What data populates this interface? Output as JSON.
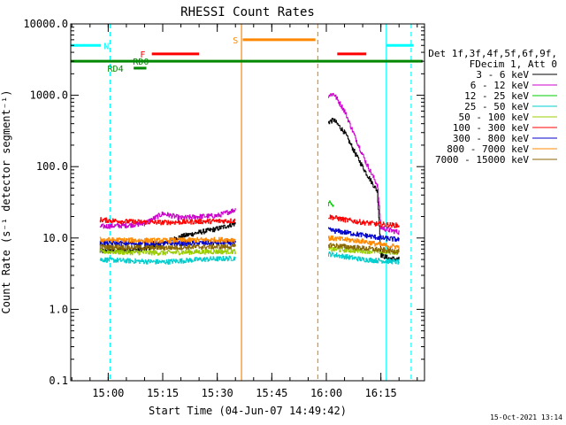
{
  "timestamp": "15-Oct-2021 13:14",
  "chart_data": {
    "type": "line",
    "title": "RHESSI Count Rates",
    "xlabel": "Start Time (04-Jun-07 14:49:42)",
    "ylabel": "Count Rate (s⁻¹ detector segment⁻¹)",
    "y_scale": "log",
    "xlim": [
      "14:49:42",
      "16:27:00"
    ],
    "ylim": [
      0.1,
      10000
    ],
    "x_ticks": [
      "15:00",
      "15:15",
      "15:30",
      "15:45",
      "16:00",
      "16:15"
    ],
    "y_ticks": [
      "0.1",
      "1.0",
      "10.0",
      "100.0",
      "1000.0",
      "10000.0"
    ],
    "legend": {
      "placement": "right",
      "header": [
        "Det 1f,3f,4f,5f,6f,9f,",
        "FDecim 1, Att 0"
      ]
    },
    "series": [
      {
        "name": "3 - 6 keV",
        "color": "#000000",
        "segments": [
          {
            "x": [
              "14:57:40",
              "15:05",
              "15:10",
              "15:15",
              "15:20",
              "15:25",
              "15:30",
              "15:35:00"
            ],
            "y": [
              6.5,
              6.8,
              7.0,
              8.5,
              10.5,
              12.0,
              13.5,
              16.0
            ]
          },
          {
            "x": [
              "16:00:30",
              "16:02",
              "16:05",
              "16:08",
              "16:11",
              "16:14",
              "16:15",
              "16:17",
              "16:20:00"
            ],
            "y": [
              420,
              450,
              300,
              150,
              80,
              45,
              5.8,
              5.2,
              5.0
            ]
          }
        ]
      },
      {
        "name": "6 - 12 keV",
        "color": "#cc00cc",
        "segments": [
          {
            "x": [
              "14:57:40",
              "15:05",
              "15:10",
              "15:15",
              "15:20",
              "15:25",
              "15:30",
              "15:35:00"
            ],
            "y": [
              14.5,
              15.0,
              16.0,
              22.0,
              19.0,
              20.0,
              20.5,
              25.0
            ]
          },
          {
            "x": [
              "16:00:30",
              "16:02",
              "16:05",
              "16:08",
              "16:11",
              "16:14",
              "16:15",
              "16:17",
              "16:20:00"
            ],
            "y": [
              1000,
              1050,
              600,
              250,
              110,
              55,
              14.0,
              13.0,
              12.0
            ]
          }
        ]
      },
      {
        "name": "12 - 25 keV",
        "color": "#00cc00",
        "segments": [
          {
            "x": [
              "16:00:30",
              "16:01:20",
              "16:02:00"
            ],
            "y": [
              30,
              32,
              28
            ]
          }
        ]
      },
      {
        "name": "25 - 50 keV",
        "color": "#00cccc",
        "segments": [
          {
            "x": [
              "14:57:40",
              "15:05",
              "15:15",
              "15:25",
              "15:35:00"
            ],
            "y": [
              5.0,
              4.8,
              4.6,
              5.0,
              5.2
            ]
          },
          {
            "x": [
              "16:00:30",
              "16:05",
              "16:10",
              "16:15",
              "16:20:00"
            ],
            "y": [
              6.0,
              5.5,
              5.0,
              4.8,
              4.6
            ]
          }
        ]
      },
      {
        "name": "50 - 100 keV",
        "color": "#99cc00",
        "segments": [
          {
            "x": [
              "14:57:40",
              "15:05",
              "15:15",
              "15:25",
              "15:35:00"
            ],
            "y": [
              6.5,
              6.3,
              6.2,
              6.4,
              6.5
            ]
          },
          {
            "x": [
              "16:00:30",
              "16:05",
              "16:10",
              "16:15",
              "16:20:00"
            ],
            "y": [
              7.0,
              6.8,
              6.6,
              6.4,
              6.3
            ]
          }
        ]
      },
      {
        "name": "100 - 300 keV",
        "color": "#ff0000",
        "segments": [
          {
            "x": [
              "14:57:40",
              "15:05",
              "15:15",
              "15:25",
              "15:35:00"
            ],
            "y": [
              18.0,
              17.0,
              16.5,
              17.0,
              17.5
            ]
          },
          {
            "x": [
              "16:00:30",
              "16:05",
              "16:10",
              "16:15",
              "16:20:00"
            ],
            "y": [
              20.0,
              18.0,
              16.5,
              15.5,
              15.0
            ]
          }
        ]
      },
      {
        "name": "300 - 800 keV",
        "color": "#0000cc",
        "segments": [
          {
            "x": [
              "14:57:40",
              "15:05",
              "15:15",
              "15:25",
              "15:35:00"
            ],
            "y": [
              8.5,
              8.4,
              8.3,
              8.5,
              8.6
            ]
          },
          {
            "x": [
              "16:00:30",
              "16:05",
              "16:10",
              "16:15",
              "16:20:00"
            ],
            "y": [
              13.0,
              12.0,
              11.0,
              10.0,
              9.5
            ]
          }
        ]
      },
      {
        "name": "800 - 7000 keV",
        "color": "#ff8800",
        "segments": [
          {
            "x": [
              "14:57:40",
              "15:05",
              "15:15",
              "15:25",
              "15:35:00"
            ],
            "y": [
              9.5,
              9.3,
              9.2,
              9.4,
              9.5
            ]
          },
          {
            "x": [
              "16:00:30",
              "16:05",
              "16:10",
              "16:15",
              "16:20:00"
            ],
            "y": [
              10.0,
              9.5,
              9.0,
              8.0,
              7.5
            ]
          }
        ]
      },
      {
        "name": "7000 - 15000 keV",
        "color": "#886600",
        "segments": [
          {
            "x": [
              "14:57:40",
              "15:05",
              "15:15",
              "15:25",
              "15:35:00"
            ],
            "y": [
              7.5,
              7.4,
              7.3,
              7.5,
              7.6
            ]
          },
          {
            "x": [
              "16:00:30",
              "16:05",
              "16:10",
              "16:15",
              "16:20:00"
            ],
            "y": [
              8.0,
              7.6,
              7.2,
              6.8,
              6.5
            ]
          }
        ]
      }
    ],
    "state_bars": [
      {
        "label": "N",
        "color": "#00ffff",
        "y": 5000,
        "segments": [
          [
            "14:49:42",
            "14:58:00"
          ],
          [
            "16:16:30",
            "16:24:00"
          ]
        ],
        "label_at": "14:59:30"
      },
      {
        "label": "F",
        "color": "#ff0000",
        "y": 3800,
        "segments": [
          [
            "15:12:00",
            "15:25:00"
          ],
          [
            "16:03:00",
            "16:11:00"
          ]
        ],
        "label_at": "15:09:30"
      },
      {
        "label": "S",
        "color": "#ff8800",
        "y": 6000,
        "segments": [
          [
            "15:37:00",
            "15:57:00"
          ]
        ],
        "label_at": "15:35:00"
      },
      {
        "label": "RD0",
        "color": "#008800",
        "y": 3000,
        "segments": [
          [
            "14:49:42",
            "16:26:30"
          ]
        ],
        "label_at": "15:09:00"
      },
      {
        "label": "RD4",
        "color": "#008800",
        "y": 2400,
        "segments": [
          [
            "15:07:00",
            "15:10:30"
          ]
        ],
        "label_at": "15:02:00"
      }
    ],
    "vlines": [
      {
        "x": "15:00:30",
        "color": "#00ffff",
        "dash": true
      },
      {
        "x": "15:36:40",
        "color": "#ff8800",
        "dash": false
      },
      {
        "x": "15:57:40",
        "color": "#ff8800",
        "dash": true
      },
      {
        "x": "16:16:30",
        "color": "#00ffff",
        "dash": false
      },
      {
        "x": "16:23:20",
        "color": "#00ffff",
        "dash": true
      }
    ]
  }
}
